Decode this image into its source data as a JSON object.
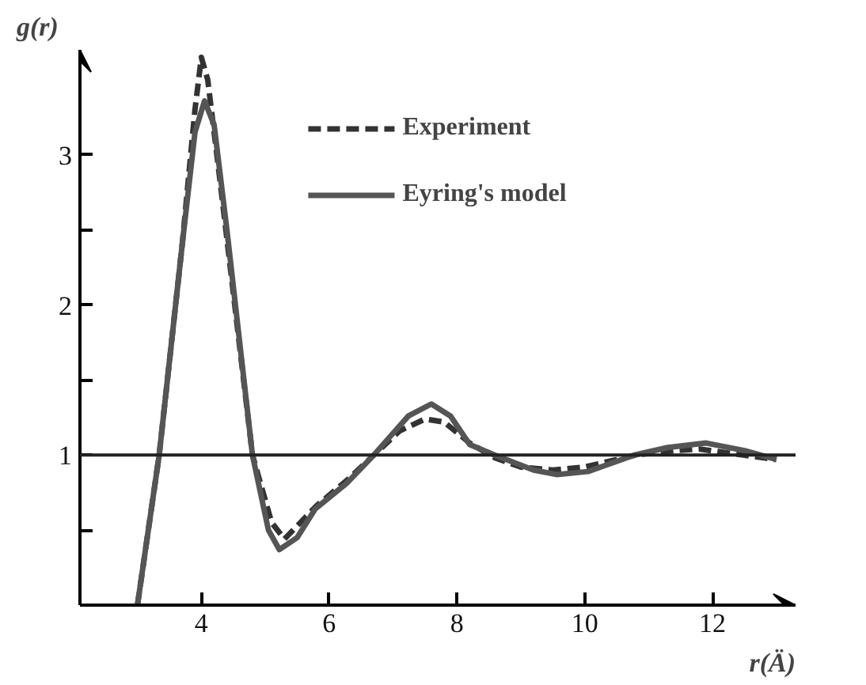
{
  "chart_data": {
    "type": "line",
    "xlabel": "r(Ä)",
    "ylabel": "g(r)",
    "xlim": [
      2.1,
      13.3
    ],
    "ylim": [
      0,
      3.7
    ],
    "xticks": [
      4,
      6,
      8,
      10,
      12
    ],
    "yticks": [
      {
        "value": 0.5,
        "label": null
      },
      1,
      {
        "value": 1.5,
        "label": null
      },
      2,
      {
        "value": 2.5,
        "label": null
      },
      3
    ],
    "grid": false,
    "legend": "top",
    "marker": "none",
    "ref_lines": [
      {
        "axis": "y",
        "value": 1,
        "label": null,
        "color": "#222222"
      }
    ],
    "series": [
      {
        "name": "Experiment",
        "color": "#333333",
        "line_style": "dashed",
        "x": [
          3.0,
          3.34,
          3.7,
          3.9,
          4.0,
          4.1,
          4.3,
          4.8,
          5.1,
          5.3,
          5.8,
          6.3,
          6.7,
          7.1,
          7.5,
          7.8,
          8.2,
          8.6,
          9.0,
          9.5,
          10.0,
          10.8,
          11.4,
          11.8,
          12.3,
          13.0
        ],
        "values": [
          0,
          1.0,
          2.4,
          3.3,
          3.65,
          3.5,
          2.8,
          1.0,
          0.55,
          0.44,
          0.66,
          0.84,
          1.0,
          1.16,
          1.24,
          1.22,
          1.08,
          0.98,
          0.92,
          0.9,
          0.92,
          1.0,
          1.03,
          1.04,
          1.01,
          0.97
        ]
      },
      {
        "name": "Eyring's model",
        "color": "#555555",
        "line_style": "solid",
        "x": [
          3.0,
          3.34,
          3.7,
          3.9,
          4.05,
          4.2,
          4.4,
          4.8,
          5.05,
          5.22,
          5.5,
          5.78,
          6.27,
          6.7,
          7.24,
          7.6,
          7.9,
          8.2,
          8.59,
          9.2,
          9.56,
          10.05,
          10.78,
          11.3,
          11.9,
          12.5,
          13.0
        ],
        "values": [
          0,
          1.0,
          2.4,
          3.15,
          3.36,
          3.2,
          2.5,
          1.0,
          0.5,
          0.37,
          0.45,
          0.64,
          0.81,
          1.0,
          1.26,
          1.34,
          1.26,
          1.07,
          1.0,
          0.9,
          0.87,
          0.89,
          1.0,
          1.05,
          1.08,
          1.03,
          0.97
        ]
      }
    ]
  }
}
